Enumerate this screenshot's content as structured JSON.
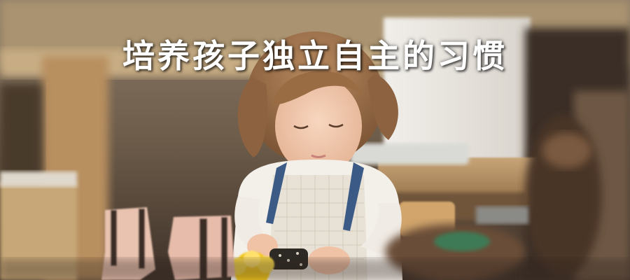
{
  "headline": {
    "text": "培养孩子独立自主的习惯"
  },
  "photo": {
    "subject": "girl-polishing-shoes",
    "palette": {
      "background_warm": "#7a6a58",
      "shelf_wood": "#b89465",
      "white_board": "#e9e6e0",
      "sweater": "#f3efe9",
      "apron_strap": "#3c5a86",
      "hair": "#9a6c44",
      "skin": "#f2c9ad",
      "boot_pink": "#e9c2b0",
      "boot_stripe": "#3a2d28",
      "flower_yellow": "#f2c81b"
    }
  }
}
